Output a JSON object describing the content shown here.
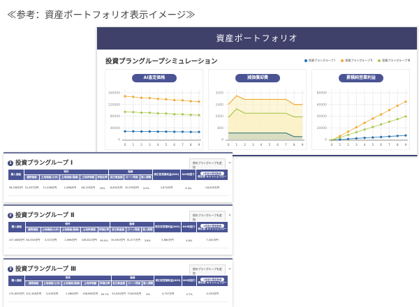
{
  "page_title": "≪参考：資産ポートフォリオ表示イメージ≫",
  "panel": {
    "title": "資産ポートフォリオ",
    "subtitle": "投資プラングループシミュレーション",
    "legend": [
      {
        "label": "投資プラングループ Ⅰ",
        "color": "#1f6fae"
      },
      {
        "label": "投資プラングループ Ⅱ",
        "color": "#f0a830"
      },
      {
        "label": "投資プラングループ Ⅲ",
        "color": "#a8c84a"
      }
    ]
  },
  "chart_data": [
    {
      "type": "line",
      "title": "AI査定価格",
      "categories": [
        "0",
        "1",
        "2",
        "3",
        "4",
        "5",
        "6",
        "7",
        "8",
        "9"
      ],
      "ylim": [
        0,
        160000
      ],
      "yticks": [
        "0",
        "40000",
        "80000",
        "120000",
        "160000"
      ],
      "series": [
        {
          "name": "投資プラングループ Ⅰ",
          "values": [
            28000,
            28000,
            27500,
            27500,
            27000,
            27000,
            26500,
            26500,
            26000,
            26000
          ]
        },
        {
          "name": "投資プラングループ Ⅱ",
          "values": [
            148000,
            146000,
            143000,
            142000,
            139000,
            138000,
            135000,
            134000,
            131000,
            130000
          ]
        },
        {
          "name": "投資プラングループ Ⅲ",
          "values": [
            95000,
            94000,
            92000,
            91500,
            89500,
            89000,
            87000,
            86500,
            84500,
            83500
          ]
        }
      ]
    },
    {
      "type": "area",
      "title": "減価償却費",
      "categories": [
        "0",
        "1",
        "2",
        "3",
        "4",
        "5",
        "6",
        "7",
        "8",
        "9"
      ],
      "ylim": [
        0,
        3200
      ],
      "yticks": [
        "0",
        "800",
        "1600",
        "2400",
        "3200"
      ],
      "series": [
        {
          "name": "投資プラングループ Ⅰ",
          "values": [
            450,
            450,
            450,
            450,
            450,
            450,
            450,
            450,
            200,
            200
          ]
        },
        {
          "name": "投資プラングループ Ⅱ",
          "values": [
            2400,
            3000,
            2750,
            2750,
            2750,
            2750,
            2750,
            2750,
            2400,
            2400
          ]
        },
        {
          "name": "投資プラングループ Ⅲ",
          "values": [
            1500,
            2100,
            1800,
            1800,
            1800,
            1800,
            1800,
            1800,
            1550,
            1550
          ]
        }
      ]
    },
    {
      "type": "line",
      "title": "累積純営業利益",
      "categories": [
        "0",
        "1",
        "2",
        "3",
        "4",
        "5",
        "6",
        "7",
        "8",
        "9"
      ],
      "ylim": [
        0,
        80000
      ],
      "yticks": [
        "0",
        "20000",
        "40000",
        "60000",
        "80000"
      ],
      "series": [
        {
          "name": "投資プラングループ Ⅰ",
          "values": [
            -1000,
            0,
            1000,
            2000,
            2800,
            3600,
            4500,
            5300,
            6200,
            7000
          ]
        },
        {
          "name": "投資プラングループ Ⅱ",
          "values": [
            -1000,
            6000,
            13500,
            21000,
            28500,
            36000,
            43000,
            50500,
            58000,
            65000
          ]
        },
        {
          "name": "投資プラングループ Ⅲ",
          "values": [
            -1000,
            3500,
            8000,
            12500,
            17000,
            21500,
            26000,
            30500,
            35000,
            39500
          ]
        }
      ]
    }
  ],
  "table_headers": {
    "price": "購入価格",
    "prop": "物件",
    "loan": "融資",
    "prop_cols": [
      "建物価格",
      "土地価格(公示)",
      "土地価格(路線)",
      "土地評価額",
      "評価比率"
    ],
    "loan_cols": [
      "自己資金額",
      "ローン残高",
      "借入期間"
    ],
    "noi": "税引前営業利益(NOI)",
    "yield": "NOI利回り",
    "badge": "1年目の想定数値",
    "cf": "税引前 キャッシュフロー"
  },
  "groups": [
    {
      "num": "1",
      "title": "投資プラングループ Ⅰ",
      "select": "他のプラングループを追加",
      "row": [
        "56,338万円",
        "51,637万円",
        "11,098万円",
        "2,386万円",
        "48,159万円",
        "25%",
        "8,650万円",
        "20,978万円",
        "3.5%",
        "2,870万円",
        "3.4%",
        "-18,009万円"
      ]
    },
    {
      "num": "2",
      "title": "投資プラングループ Ⅱ",
      "select": "他のプラングループを追加",
      "row": [
        "107,068万円",
        "64,350万円",
        "3,372万円",
        "2,566万円",
        "108,812万円",
        "95.0%",
        "34,050万円",
        "31,077万円",
        "3.6%",
        "5,860万円",
        "4.8%",
        "7,432万円"
      ]
    },
    {
      "num": "3",
      "title": "投資プラングループ Ⅲ",
      "select": "他のプラングループを追加",
      "row": [
        "174,630万円",
        "101,306万円",
        "3,430万円",
        "1,086万円",
        "108,660万円",
        "95.7%",
        "53,000万円",
        "73,605万円",
        "3%",
        "4,757万円",
        "3.7%",
        "4,330万円"
      ]
    }
  ]
}
